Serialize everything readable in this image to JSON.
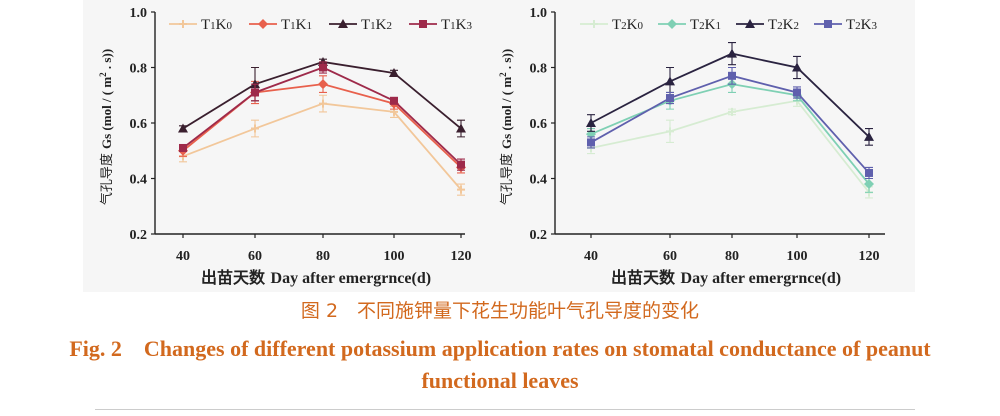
{
  "chart_data": [
    {
      "type": "line",
      "ylabel_cn": "气孔导度",
      "ylabel_en": "Gs (mol / ( m",
      "ylabel_sup": "2",
      "ylabel_end": " . s))",
      "xlabel_cn": "出苗天数",
      "xlabel_en": "Day after emergrnce(d)",
      "x": [
        40,
        60,
        80,
        100,
        120
      ],
      "ylim": [
        0.2,
        1.0
      ],
      "yticks": [
        "0.2",
        "0.4",
        "0.6",
        "0.8",
        "1.0"
      ],
      "series": [
        {
          "name": "T1K0",
          "label_parts": [
            "T",
            "1",
            "K",
            "0"
          ],
          "color": "#f2c79a",
          "marker": "cross",
          "values": [
            0.48,
            0.58,
            0.67,
            0.64,
            0.36
          ],
          "errors": [
            0.02,
            0.03,
            0.03,
            0.02,
            0.02
          ]
        },
        {
          "name": "T1K1",
          "label_parts": [
            "T",
            "1",
            "K",
            "1"
          ],
          "color": "#e8604c",
          "marker": "diamond",
          "values": [
            0.5,
            0.71,
            0.74,
            0.67,
            0.44
          ],
          "errors": [
            0.02,
            0.04,
            0.03,
            0.02,
            0.02
          ]
        },
        {
          "name": "T1K2",
          "label_parts": [
            "T",
            "1",
            "K",
            "2"
          ],
          "color": "#3a1f2e",
          "marker": "triangle",
          "values": [
            0.58,
            0.74,
            0.82,
            0.78,
            0.58
          ],
          "errors": [
            0.01,
            0.06,
            0.01,
            0.01,
            0.03
          ]
        },
        {
          "name": "T1K3",
          "label_parts": [
            "T",
            "1",
            "K",
            "3"
          ],
          "color": "#9e2a4a",
          "marker": "square",
          "values": [
            0.51,
            0.71,
            0.8,
            0.68,
            0.45
          ],
          "errors": [
            0.01,
            0.03,
            0.02,
            0.01,
            0.02
          ]
        }
      ]
    },
    {
      "type": "line",
      "ylabel_cn": "气孔导度",
      "ylabel_en": "Gs (mol / ( m",
      "ylabel_sup": "2",
      "ylabel_end": " . s))",
      "xlabel_cn": "出苗天数",
      "xlabel_en": "Day after emergrnce(d)",
      "x": [
        40,
        60,
        80,
        100,
        120
      ],
      "ylim": [
        0.2,
        1.0
      ],
      "yticks": [
        "0.2",
        "0.4",
        "0.6",
        "0.8",
        "1.0"
      ],
      "series": [
        {
          "name": "T2K0",
          "label_parts": [
            "T",
            "2",
            "K",
            "0"
          ],
          "color": "#d6ecd2",
          "marker": "cross",
          "values": [
            0.51,
            0.57,
            0.64,
            0.68,
            0.35
          ],
          "errors": [
            0.02,
            0.04,
            0.01,
            0.02,
            0.02
          ]
        },
        {
          "name": "T2K1",
          "label_parts": [
            "T",
            "2",
            "K",
            "1"
          ],
          "color": "#7fd0b4",
          "marker": "diamond",
          "values": [
            0.56,
            0.68,
            0.74,
            0.7,
            0.38
          ],
          "errors": [
            0.02,
            0.03,
            0.03,
            0.02,
            0.03
          ]
        },
        {
          "name": "T2K2",
          "label_parts": [
            "T",
            "2",
            "K",
            "2"
          ],
          "color": "#2a2340",
          "marker": "triangle",
          "values": [
            0.6,
            0.75,
            0.85,
            0.8,
            0.55
          ],
          "errors": [
            0.03,
            0.05,
            0.04,
            0.04,
            0.03
          ]
        },
        {
          "name": "T2K3",
          "label_parts": [
            "T",
            "2",
            "K",
            "3"
          ],
          "color": "#5f60ad",
          "marker": "square",
          "values": [
            0.53,
            0.69,
            0.77,
            0.71,
            0.42
          ],
          "errors": [
            0.02,
            0.02,
            0.03,
            0.02,
            0.02
          ]
        }
      ]
    }
  ],
  "caption": {
    "cn": "图 2　不同施钾量下花生功能叶气孔导度的变化",
    "en": "Fig. 2　Changes of different potassium application rates on stomatal conductance of peanut functional leaves"
  }
}
